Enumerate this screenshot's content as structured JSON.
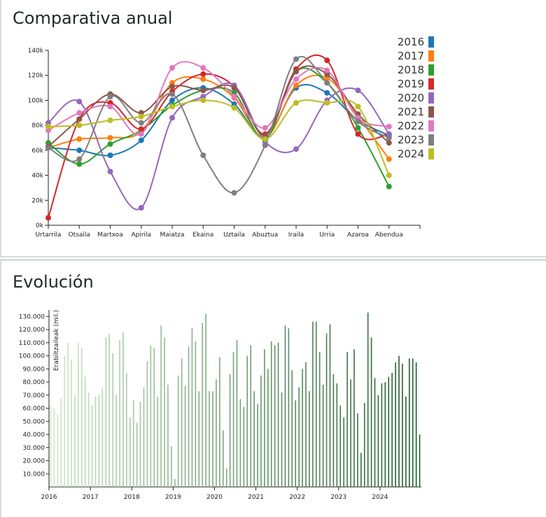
{
  "annual": {
    "title": "Comparativa anual",
    "chart_data": {
      "type": "line",
      "categories": [
        "Urtarrila",
        "Otsaila",
        "Martxoa",
        "Apirila",
        "Maiatza",
        "Ekaina",
        "Uztaila",
        "Abuztua",
        "Iraila",
        "Urria",
        "Azaroa",
        "Abendua"
      ],
      "ylim": [
        0,
        140000
      ],
      "yticks": [
        0,
        20000,
        40000,
        60000,
        80000,
        100000,
        120000,
        140000
      ],
      "ytick_labels": [
        "0k",
        "20k",
        "40k",
        "60k",
        "80k",
        "100k",
        "120k",
        "140k"
      ],
      "legend_position": "right",
      "series": [
        {
          "name": "2016",
          "color": "#1f77b4",
          "values": [
            62000,
            60000,
            56000,
            68000,
            100000,
            110000,
            97000,
            70000,
            110000,
            106000,
            84000,
            72000
          ]
        },
        {
          "name": "2017",
          "color": "#ff7f0e",
          "values": [
            62000,
            69000,
            70000,
            75000,
            114000,
            117000,
            102000,
            70000,
            112000,
            118000,
            87000,
            53000
          ]
        },
        {
          "name": "2018",
          "color": "#2ca02c",
          "values": [
            66000,
            49000,
            65000,
            76000,
            96000,
            108000,
            106000,
            69000,
            123000,
            114000,
            78000,
            31000
          ]
        },
        {
          "name": "2019",
          "color": "#d62728",
          "values": [
            6000,
            85000,
            98000,
            77000,
            107000,
            121000,
            111000,
            73000,
            125000,
            132000,
            73000,
            73000
          ]
        },
        {
          "name": "2020",
          "color": "#9467bd",
          "values": [
            82000,
            99000,
            43000,
            14000,
            86000,
            103000,
            112000,
            67000,
            61000,
            100000,
            108000,
            73000
          ]
        },
        {
          "name": "2021",
          "color": "#8c564b",
          "values": [
            63000,
            85000,
            105000,
            90000,
            111000,
            108000,
            110000,
            72000,
            123000,
            121000,
            89000,
            66000
          ]
        },
        {
          "name": "2022",
          "color": "#e377c2",
          "values": [
            76000,
            90000,
            95000,
            73000,
            126000,
            126000,
            103000,
            78000,
            117000,
            124000,
            86000,
            79000
          ]
        },
        {
          "name": "2023",
          "color": "#7f7f7f",
          "values": [
            62000,
            53000,
            103000,
            82000,
            105000,
            56000,
            26000,
            64000,
            133000,
            114000,
            83000,
            70000
          ]
        },
        {
          "name": "2024",
          "color": "#bcbd22",
          "values": [
            79000,
            80000,
            84000,
            87000,
            95000,
            100000,
            94000,
            69000,
            98000,
            98000,
            95000,
            40000
          ]
        }
      ]
    }
  },
  "evolution": {
    "title": "Evolución",
    "chart_data": {
      "type": "bar",
      "ylabel": "Erabiltzaileak (mil.)",
      "ylim": [
        0,
        135000
      ],
      "yticks": [
        10000,
        20000,
        30000,
        40000,
        50000,
        60000,
        70000,
        80000,
        90000,
        100000,
        110000,
        120000,
        130000
      ],
      "ytick_labels": [
        "10.000",
        "20.000",
        "30.000",
        "40.000",
        "50.000",
        "60.000",
        "70.000",
        "80.000",
        "90.000",
        "100.000",
        "110.000",
        "120.000",
        "130.000"
      ],
      "xtick_labels": [
        "2016",
        "2017",
        "2018",
        "2019",
        "2020",
        "2021",
        "2022",
        "2023",
        "2024"
      ],
      "color_start": "#cfe7c8",
      "color_end": "#1f5a2b",
      "years": [
        {
          "year": "2016",
          "values": [
            62000,
            60000,
            56000,
            68000,
            100000,
            110000,
            97000,
            70000,
            110000,
            106000,
            84000,
            72000
          ]
        },
        {
          "year": "2017",
          "values": [
            62000,
            69000,
            70000,
            75000,
            114000,
            117000,
            102000,
            70000,
            112000,
            118000,
            87000,
            53000
          ]
        },
        {
          "year": "2018",
          "values": [
            66000,
            49000,
            65000,
            76000,
            96000,
            108000,
            106000,
            69000,
            123000,
            114000,
            78000,
            31000
          ]
        },
        {
          "year": "2019",
          "values": [
            6000,
            85000,
            98000,
            77000,
            107000,
            121000,
            111000,
            73000,
            125000,
            132000,
            73000,
            73000
          ]
        },
        {
          "year": "2020",
          "values": [
            82000,
            99000,
            43000,
            14000,
            86000,
            103000,
            112000,
            67000,
            61000,
            100000,
            108000,
            73000
          ]
        },
        {
          "year": "2021",
          "values": [
            63000,
            85000,
            105000,
            90000,
            111000,
            108000,
            110000,
            72000,
            123000,
            121000,
            89000,
            66000
          ]
        },
        {
          "year": "2022",
          "values": [
            76000,
            90000,
            95000,
            73000,
            126000,
            126000,
            103000,
            78000,
            117000,
            124000,
            86000,
            79000
          ]
        },
        {
          "year": "2023",
          "values": [
            62000,
            53000,
            103000,
            82000,
            105000,
            56000,
            26000,
            64000,
            133000,
            114000,
            83000,
            70000
          ]
        },
        {
          "year": "2024",
          "values": [
            79000,
            80000,
            84000,
            87000,
            95000,
            100000,
            94000,
            69000,
            98000,
            98000,
            95000,
            40000
          ]
        }
      ]
    }
  }
}
